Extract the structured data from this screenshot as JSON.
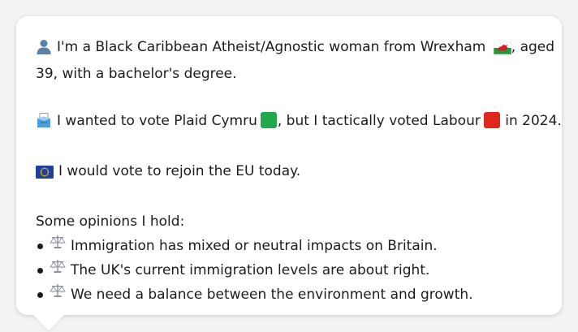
{
  "intro": {
    "line1": "I'm a Black Caribbean Atheist/Agnostic woman from Wrexham",
    "line1_suffix": ", aged",
    "line2": "39, with a bachelor's degree."
  },
  "vote": {
    "part1": "I wanted to vote Plaid Cymru",
    "part2": ", but I tactically voted Labour",
    "part3": "in 2024.",
    "plaid_color": "#20a84a",
    "labour_color": "#e0271b"
  },
  "eu": {
    "text": "I would vote to rejoin the EU today."
  },
  "opinions": {
    "heading": "Some opinions I hold:",
    "items": [
      "Immigration has mixed or neutral impacts on Britain.",
      "The UK's current immigration levels are about right.",
      "We need a balance between the environment and growth."
    ]
  },
  "icons": {
    "person": "person-silhouette-icon",
    "wales_flag": "wales-flag-icon",
    "ballot": "ballot-box-icon",
    "eu_flag": "eu-flag-icon",
    "scales": "balance-scale-icon"
  }
}
